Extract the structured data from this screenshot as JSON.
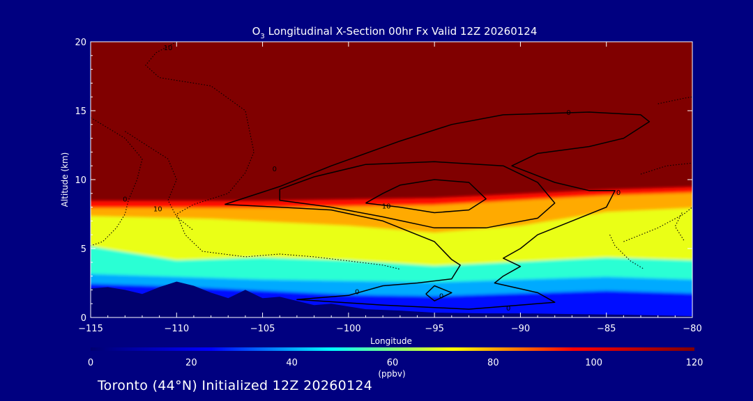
{
  "chart_data": {
    "type": "heatmap",
    "title_prefix": "O",
    "title_sub": "3",
    "title_rest": " Longitudinal X-Section 00hr  Fx Valid 12Z 20260124",
    "xlabel": "Longitude",
    "ylabel": "Altitude (km)",
    "xlim": [
      -115,
      -80
    ],
    "ylim": [
      0,
      20
    ],
    "x_ticks": [
      -115,
      -110,
      -105,
      -100,
      -95,
      -90,
      -85,
      -80
    ],
    "x_tick_labels": [
      "−115",
      "−110",
      "−105",
      "−100",
      "−95",
      "−90",
      "−85",
      "−80"
    ],
    "y_ticks": [
      0,
      5,
      10,
      15,
      20
    ],
    "y_tick_labels": [
      "0",
      "5",
      "10",
      "15",
      "20"
    ],
    "colorbar": {
      "min": 0,
      "max": 120,
      "ticks": [
        0,
        20,
        40,
        60,
        80,
        100,
        120
      ],
      "tick_labels": [
        "0",
        "20",
        "40",
        "60",
        "80",
        "100",
        "120"
      ],
      "unit": "(ppbv)",
      "colors": [
        "#000070",
        "#0000ff",
        "#00ffff",
        "#ffff00",
        "#ff0000",
        "#800000"
      ]
    },
    "layers": [
      {
        "value": 120,
        "upper": [
          [
            -115,
            20
          ],
          [
            -80,
            20
          ]
        ],
        "lower": [
          [
            -115,
            8.3
          ],
          [
            -105,
            8.3
          ],
          [
            -95,
            8.5
          ],
          [
            -85,
            9.1
          ],
          [
            -80,
            9.3
          ]
        ]
      },
      {
        "value": 95,
        "upper": [
          [
            -115,
            8.3
          ],
          [
            -105,
            8.3
          ],
          [
            -95,
            8.5
          ],
          [
            -85,
            9.1
          ],
          [
            -80,
            9.3
          ]
        ],
        "lower": [
          [
            -115,
            7.8
          ],
          [
            -105,
            7.8
          ],
          [
            -95,
            8.0
          ],
          [
            -85,
            8.7
          ],
          [
            -80,
            8.9
          ]
        ]
      },
      {
        "value": 80,
        "upper": [
          [
            -115,
            7.8
          ],
          [
            -105,
            7.8
          ],
          [
            -95,
            8.0
          ],
          [
            -85,
            8.7
          ],
          [
            -80,
            8.9
          ]
        ],
        "lower": [
          [
            -115,
            7.2
          ],
          [
            -108,
            7.0
          ],
          [
            -100,
            6.5
          ],
          [
            -95,
            6.0
          ],
          [
            -90,
            6.5
          ],
          [
            -85,
            7.5
          ],
          [
            -80,
            7.8
          ]
        ]
      },
      {
        "value": 70,
        "upper": [
          [
            -115,
            7.2
          ],
          [
            -108,
            7.0
          ],
          [
            -100,
            6.5
          ],
          [
            -95,
            6.0
          ],
          [
            -90,
            6.5
          ],
          [
            -85,
            7.5
          ],
          [
            -80,
            7.8
          ]
        ],
        "lower": [
          [
            -115,
            5.0
          ],
          [
            -110,
            4.0
          ],
          [
            -105,
            4.2
          ],
          [
            -100,
            4.0
          ],
          [
            -95,
            3.6
          ],
          [
            -90,
            3.9
          ],
          [
            -85,
            4.2
          ],
          [
            -80,
            4.0
          ]
        ]
      },
      {
        "value": 52,
        "upper": [
          [
            -115,
            5.0
          ],
          [
            -110,
            4.0
          ],
          [
            -105,
            4.2
          ],
          [
            -100,
            4.0
          ],
          [
            -95,
            3.6
          ],
          [
            -90,
            3.9
          ],
          [
            -85,
            4.2
          ],
          [
            -80,
            4.0
          ]
        ],
        "lower": [
          [
            -115,
            3.0
          ],
          [
            -110,
            2.8
          ],
          [
            -105,
            2.6
          ],
          [
            -100,
            2.5
          ],
          [
            -95,
            2.4
          ],
          [
            -90,
            2.6
          ],
          [
            -85,
            2.8
          ],
          [
            -80,
            2.6
          ]
        ]
      },
      {
        "value": 40,
        "upper": [
          [
            -115,
            3.0
          ],
          [
            -110,
            2.8
          ],
          [
            -105,
            2.6
          ],
          [
            -100,
            2.5
          ],
          [
            -95,
            2.4
          ],
          [
            -90,
            2.6
          ],
          [
            -85,
            2.8
          ],
          [
            -80,
            2.6
          ]
        ],
        "lower": [
          [
            -115,
            2.3
          ],
          [
            -110,
            2.1
          ],
          [
            -105,
            1.8
          ],
          [
            -100,
            1.5
          ],
          [
            -95,
            1.4
          ],
          [
            -90,
            1.6
          ],
          [
            -85,
            1.8
          ],
          [
            -80,
            1.6
          ]
        ]
      },
      {
        "value": 25,
        "upper": [
          [
            -115,
            2.3
          ],
          [
            -110,
            2.1
          ],
          [
            -105,
            1.8
          ],
          [
            -100,
            1.5
          ],
          [
            -95,
            1.4
          ],
          [
            -90,
            1.6
          ],
          [
            -85,
            1.8
          ],
          [
            -80,
            1.6
          ]
        ],
        "lower": [
          [
            -115,
            0
          ],
          [
            -80,
            0
          ]
        ]
      }
    ],
    "terrain": [
      [
        -115,
        2.1
      ],
      [
        -114,
        2.2
      ],
      [
        -113,
        2.0
      ],
      [
        -112,
        1.7
      ],
      [
        -111,
        2.2
      ],
      [
        -110,
        2.6
      ],
      [
        -109,
        2.3
      ],
      [
        -108,
        1.8
      ],
      [
        -107,
        1.4
      ],
      [
        -106,
        2.0
      ],
      [
        -105,
        1.4
      ],
      [
        -104,
        1.5
      ],
      [
        -103,
        1.2
      ],
      [
        -102,
        0.9
      ],
      [
        -101,
        1.0
      ],
      [
        -100,
        0.8
      ],
      [
        -99,
        0.6
      ],
      [
        -97,
        0.5
      ],
      [
        -95,
        0.35
      ],
      [
        -92,
        0.3
      ],
      [
        -90,
        0.3
      ],
      [
        -87,
        0.25
      ],
      [
        -84,
        0.2
      ],
      [
        -82,
        0.15
      ],
      [
        -80,
        0.1
      ]
    ],
    "contours": [
      {
        "level": "0",
        "style": "solid",
        "points": [
          [
            -107.2,
            8.2
          ],
          [
            -104,
            9.5
          ],
          [
            -101,
            11.0
          ],
          [
            -97,
            12.8
          ],
          [
            -94,
            14.0
          ],
          [
            -91,
            14.7
          ],
          [
            -86,
            14.9
          ],
          [
            -83,
            14.7
          ],
          [
            -82.5,
            14.2
          ],
          [
            -84,
            13.0
          ],
          [
            -86,
            12.4
          ],
          [
            -89,
            11.9
          ],
          [
            -90.5,
            11.0
          ],
          [
            -88,
            9.8
          ],
          [
            -86,
            9.2
          ],
          [
            -84.5,
            9.2
          ],
          [
            -85,
            8.0
          ],
          [
            -87,
            7.0
          ],
          [
            -89,
            6.0
          ],
          [
            -90,
            5.0
          ],
          [
            -91,
            4.3
          ],
          [
            -90,
            3.7
          ],
          [
            -91,
            3.0
          ],
          [
            -91.5,
            2.5
          ],
          [
            -89,
            1.8
          ],
          [
            -88,
            1.1
          ],
          [
            -93,
            0.6
          ],
          [
            -98,
            0.9
          ],
          [
            -103,
            1.3
          ],
          [
            -100,
            1.6
          ],
          [
            -98,
            2.3
          ],
          [
            -96,
            2.5
          ],
          [
            -94,
            2.8
          ],
          [
            -93.5,
            3.8
          ],
          [
            -94,
            4.2
          ],
          [
            -95,
            5.5
          ],
          [
            -98,
            7.0
          ],
          [
            -101,
            7.8
          ],
          [
            -104,
            8.0
          ],
          [
            -107.2,
            8.2
          ]
        ]
      },
      {
        "level": "",
        "style": "solid",
        "points": [
          [
            -104,
            9.3
          ],
          [
            -102,
            10.2
          ],
          [
            -99,
            11.1
          ],
          [
            -95,
            11.3
          ],
          [
            -91,
            11.0
          ],
          [
            -89,
            9.8
          ],
          [
            -88,
            8.3
          ],
          [
            -89,
            7.2
          ],
          [
            -92,
            6.5
          ],
          [
            -95,
            6.5
          ],
          [
            -98,
            7.3
          ],
          [
            -101,
            8.0
          ],
          [
            -104,
            8.5
          ],
          [
            -104,
            9.3
          ]
        ]
      },
      {
        "level": "10",
        "style": "solid",
        "points": [
          [
            -99,
            8.3
          ],
          [
            -98,
            9.0
          ],
          [
            -97,
            9.6
          ],
          [
            -95,
            10.0
          ],
          [
            -93,
            9.8
          ],
          [
            -92,
            8.6
          ],
          [
            -93,
            7.8
          ],
          [
            -95,
            7.6
          ],
          [
            -97,
            8.0
          ],
          [
            -99,
            8.3
          ]
        ]
      },
      {
        "level": "0",
        "style": "solid",
        "points": [
          [
            -95.5,
            1.7
          ],
          [
            -95,
            1.2
          ],
          [
            -94,
            1.8
          ],
          [
            -95,
            2.3
          ],
          [
            -95.5,
            1.7
          ]
        ]
      },
      {
        "level": "10",
        "style": "dotted",
        "points": [
          [
            -110,
            20
          ],
          [
            -111.2,
            19.2
          ],
          [
            -111.8,
            18.3
          ],
          [
            -111,
            17.4
          ],
          [
            -108,
            16.8
          ],
          [
            -106,
            15.0
          ],
          [
            -105.5,
            12.0
          ],
          [
            -106,
            10.5
          ],
          [
            -107,
            9.0
          ],
          [
            -109,
            8.2
          ],
          [
            -110,
            7.5
          ],
          [
            -109.5,
            6.0
          ],
          [
            -108.5,
            4.8
          ],
          [
            -106,
            4.4
          ],
          [
            -104,
            4.6
          ],
          [
            -102,
            4.4
          ],
          [
            -100,
            4.1
          ],
          [
            -98,
            3.8
          ],
          [
            -97,
            3.5
          ]
        ]
      },
      {
        "level": "10",
        "style": "dotted",
        "points": [
          [
            -115,
            14.5
          ],
          [
            -113,
            13.0
          ],
          [
            -112,
            11.5
          ],
          [
            -112.3,
            10.0
          ],
          [
            -112.8,
            8.5
          ],
          [
            -113,
            7.5
          ],
          [
            -113.5,
            6.5
          ],
          [
            -114.3,
            5.5
          ],
          [
            -115,
            5.2
          ]
        ]
      },
      {
        "level": "",
        "style": "dotted",
        "points": [
          [
            -113,
            13.5
          ],
          [
            -110.5,
            11.5
          ],
          [
            -110,
            10.0
          ],
          [
            -110.5,
            8.5
          ],
          [
            -110,
            7.3
          ],
          [
            -109,
            6.3
          ]
        ]
      },
      {
        "level": "",
        "style": "dotted",
        "points": [
          [
            -84.8,
            6.0
          ],
          [
            -84.5,
            5.2
          ],
          [
            -83.6,
            4.1
          ],
          [
            -82.8,
            3.5
          ]
        ]
      },
      {
        "level": "",
        "style": "dotted",
        "points": [
          [
            -84,
            5.5
          ],
          [
            -82,
            6.5
          ],
          [
            -80.5,
            7.5
          ],
          [
            -80,
            8.0
          ]
        ]
      },
      {
        "level": "",
        "style": "dotted",
        "points": [
          [
            -80.5,
            5.6
          ],
          [
            -81,
            6.6
          ],
          [
            -80.6,
            7.6
          ]
        ]
      },
      {
        "level": "",
        "style": "dotted",
        "points": [
          [
            -83,
            10.4
          ],
          [
            -81.5,
            11.0
          ],
          [
            -80,
            11.2
          ]
        ]
      },
      {
        "level": "",
        "style": "dotted",
        "points": [
          [
            -82,
            15.5
          ],
          [
            -80.5,
            15.9
          ],
          [
            -80,
            16.0
          ]
        ]
      }
    ],
    "contour_labels": [
      {
        "x": -110.5,
        "y": 19.6,
        "text": "10"
      },
      {
        "x": -104.3,
        "y": 10.8,
        "text": "0"
      },
      {
        "x": -113.0,
        "y": 8.6,
        "text": "0"
      },
      {
        "x": -111.1,
        "y": 7.9,
        "text": "10"
      },
      {
        "x": -97.8,
        "y": 8.1,
        "text": "10"
      },
      {
        "x": -99.5,
        "y": 1.9,
        "text": "0"
      },
      {
        "x": -94.6,
        "y": 1.6,
        "text": "0"
      },
      {
        "x": -90.7,
        "y": 0.7,
        "text": "0"
      },
      {
        "x": -84.3,
        "y": 9.1,
        "text": "0"
      },
      {
        "x": -87.2,
        "y": 14.9,
        "text": "0"
      }
    ]
  },
  "footer": "Toronto (44°N) Initialized 12Z 20260124"
}
